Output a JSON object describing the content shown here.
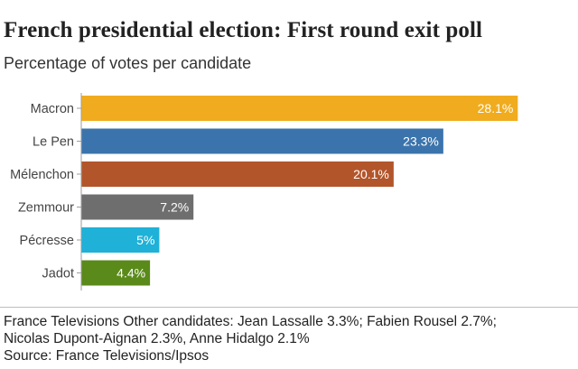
{
  "header": {
    "title": "French presidential election: First round exit poll",
    "subtitle": "Percentage of votes per candidate"
  },
  "chart_data": {
    "type": "bar",
    "orientation": "horizontal",
    "title": "French presidential election: First round exit poll",
    "subtitle": "Percentage of votes per candidate",
    "categories": [
      "Macron",
      "Le Pen",
      "Mélenchon",
      "Zemmour",
      "Pécresse",
      "Jadot"
    ],
    "values": [
      28.1,
      23.3,
      20.1,
      7.2,
      5,
      4.4
    ],
    "value_labels": [
      "28.1%",
      "23.3%",
      "20.1%",
      "7.2%",
      "5%",
      "4.4%"
    ],
    "colors": [
      "#f0ac1e",
      "#3b74ad",
      "#b3552b",
      "#6e6e6e",
      "#1fb1d8",
      "#5a8a1a"
    ],
    "xlim": [
      0,
      30
    ],
    "grid": false,
    "legend": "none"
  },
  "footer": {
    "note_line1": "France Televisions Other candidates: Jean Lassalle 3.3%; Fabien Rousel 2.7%;",
    "note_line2": "Nicolas Dupont-Aignan 2.3%, Anne Hidalgo 2.1%",
    "source": "Source: France Televisions/Ipsos"
  }
}
